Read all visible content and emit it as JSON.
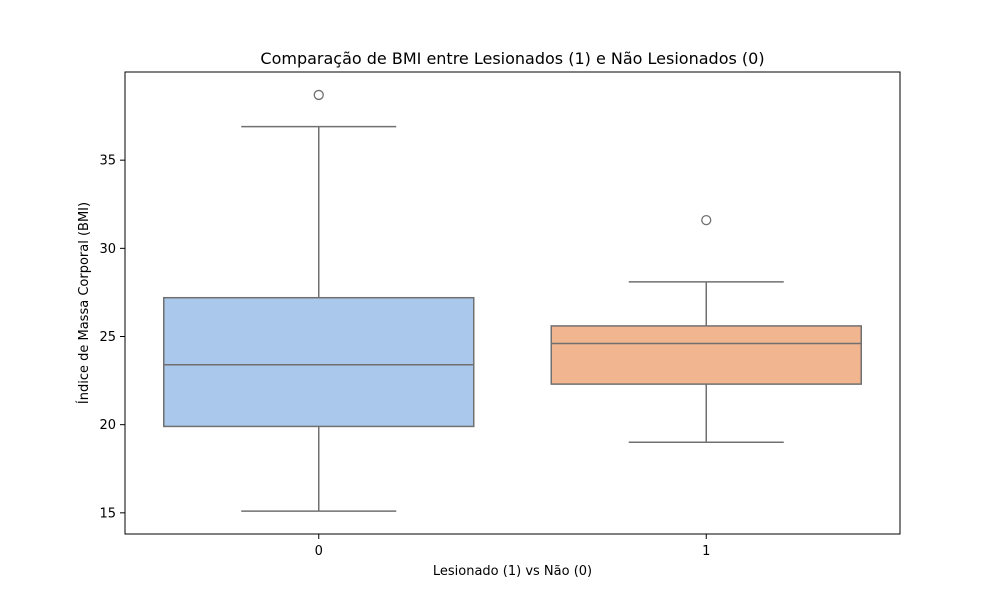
{
  "chart_data": {
    "type": "box",
    "title": "Comparação de BMI entre Lesionados (1) e Não Lesionados (0)",
    "xlabel": "Lesionado (1) vs Não (0)",
    "ylabel": "Índice de Massa Corporal (BMI)",
    "categories": [
      "0",
      "1"
    ],
    "ylim": [
      13.8,
      40.0
    ],
    "yticks": [
      15,
      20,
      25,
      30,
      35
    ],
    "grid": false,
    "boxes": [
      {
        "category": "0",
        "whisker_low": 15.1,
        "q1": 19.9,
        "median": 23.4,
        "q3": 27.2,
        "whisker_high": 36.9,
        "outliers": [
          38.7
        ],
        "color": "#a9c8eb"
      },
      {
        "category": "1",
        "whisker_low": 19.0,
        "q1": 22.3,
        "median": 24.6,
        "q3": 25.6,
        "whisker_high": 28.1,
        "outliers": [
          31.6
        ],
        "color": "#f1b58f"
      }
    ],
    "line_color": "#707070"
  }
}
